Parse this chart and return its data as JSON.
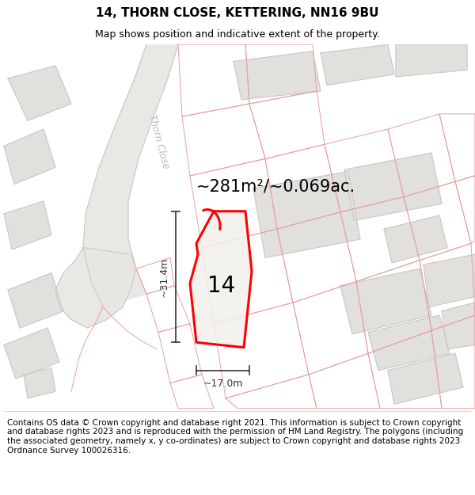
{
  "title": "14, THORN CLOSE, KETTERING, NN16 9BU",
  "subtitle": "Map shows position and indicative extent of the property.",
  "footer": "Contains OS data © Crown copyright and database right 2021. This information is subject to Crown copyright and database rights 2023 and is reproduced with the permission of HM Land Registry. The polygons (including the associated geometry, namely x, y co-ordinates) are subject to Crown copyright and database rights 2023 Ordnance Survey 100026316.",
  "area_label": "~281m²/~0.069ac.",
  "number_label": "14",
  "width_label": "~17.0m",
  "height_label": "~31.4m",
  "bg_color": "#f7f6f4",
  "parcel_edge": "#ff0000",
  "parcel_fill": "#f0eeeb",
  "dim_color": "#333333",
  "title_fontsize": 11,
  "subtitle_fontsize": 9,
  "footer_fontsize": 7.5,
  "area_fontsize": 15,
  "number_fontsize": 20,
  "dim_label_fontsize": 9,
  "road_label_color": "#bbbbbb",
  "gray_fill": "#e2e0dd",
  "gray_edge": "#c8c8c8",
  "pink_edge": "#e8a0a0",
  "road_fill": "#e8e6e3"
}
